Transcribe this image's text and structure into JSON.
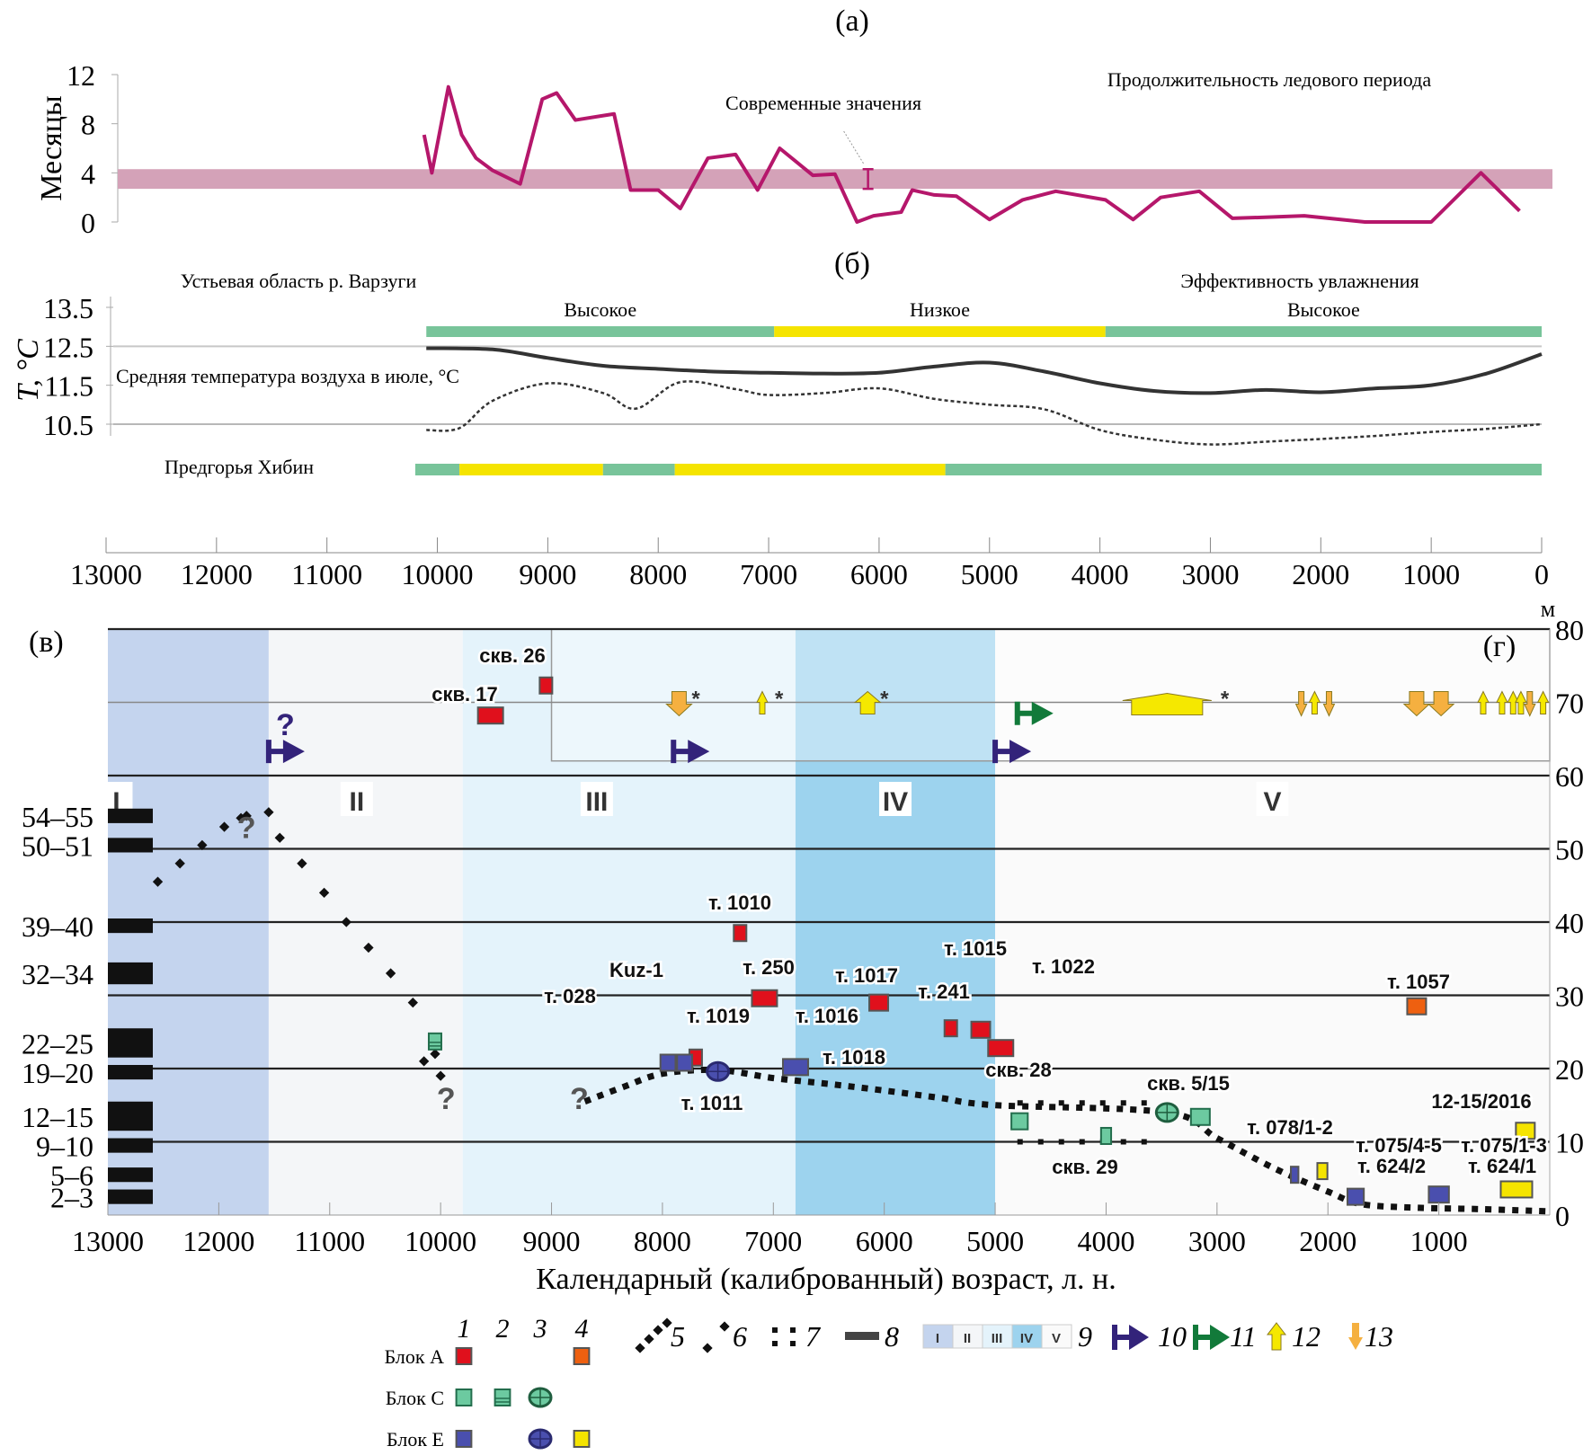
{
  "chart_data": [
    {
      "panel": "a",
      "type": "line",
      "panel_label": "(a)",
      "title": "Продолжительность ледового периода",
      "ylabel": "Месяцы",
      "yticks": [
        "12",
        "8",
        "4",
        "0"
      ],
      "ylim": [
        0,
        12
      ],
      "xlim": [
        13000,
        0
      ],
      "modern_band": [
        2.7,
        4.3
      ],
      "modern_label": "Современные значения",
      "modern_marker": {
        "x": 6100,
        "ylow": 2.7,
        "yhigh": 4.3
      },
      "series": [
        {
          "name": "Ледовый период",
          "color": "#b5176b",
          "x": [
            10120,
            10050,
            9900,
            9780,
            9650,
            9500,
            9250,
            9050,
            8920,
            8750,
            8400,
            8250,
            8000,
            7800,
            7550,
            7300,
            7100,
            6900,
            6600,
            6400,
            6200,
            6050,
            5800,
            5700,
            5500,
            5300,
            5000,
            4700,
            4400,
            3950,
            3700,
            3450,
            3100,
            2800,
            2450,
            2150,
            1600,
            1000,
            550,
            200
          ],
          "y": [
            7.1,
            4.0,
            11.0,
            7.1,
            5.2,
            4.2,
            3.1,
            10.0,
            10.5,
            8.3,
            8.8,
            2.6,
            2.6,
            1.1,
            5.2,
            5.5,
            2.6,
            6.0,
            3.8,
            3.9,
            0.0,
            0.5,
            0.8,
            2.6,
            2.2,
            2.1,
            0.2,
            1.8,
            2.5,
            1.8,
            0.2,
            2.0,
            2.5,
            0.3,
            0.4,
            0.5,
            0.0,
            0.0,
            4.0,
            0.9
          ]
        }
      ]
    },
    {
      "panel": "b",
      "type": "line",
      "panel_label": "(б)",
      "region_top": "Устьевая область р. Варзуги",
      "region_bottom": "Предгорья Хибин",
      "moisture_title": "Эффективность увлажнения",
      "ylabel": "T, °C",
      "yticks": [
        "13.5",
        "12.5",
        "11.5",
        "10.5"
      ],
      "ylim": [
        10.2,
        13.7
      ],
      "xlim": [
        13000,
        0
      ],
      "series_label": "Средняя температура воздуха в июле, °C",
      "series": [
        {
          "name": "Устьевая область р. Варзуги",
          "style": "solid",
          "color": "#333333",
          "x": [
            10100,
            9500,
            9000,
            8500,
            8000,
            7500,
            7000,
            6500,
            6000,
            5500,
            5000,
            4500,
            4000,
            3500,
            3000,
            2500,
            2000,
            1500,
            1000,
            500,
            0
          ],
          "y": [
            12.45,
            12.42,
            12.2,
            12.0,
            11.92,
            11.85,
            11.82,
            11.8,
            11.82,
            11.98,
            12.08,
            11.85,
            11.55,
            11.35,
            11.3,
            11.38,
            11.32,
            11.42,
            11.5,
            11.8,
            12.3
          ]
        },
        {
          "name": "Предгорья Хибин",
          "style": "dotted",
          "color": "#333333",
          "x": [
            10100,
            9800,
            9500,
            9000,
            8500,
            8200,
            7800,
            7300,
            7000,
            6500,
            6000,
            5500,
            5000,
            4500,
            4000,
            3500,
            3000,
            2500,
            2000,
            1500,
            1000,
            500,
            0
          ],
          "y": [
            10.35,
            10.4,
            11.1,
            11.55,
            11.3,
            10.9,
            11.58,
            11.4,
            11.25,
            11.3,
            11.42,
            11.15,
            11.0,
            10.88,
            10.35,
            10.1,
            9.98,
            10.05,
            10.12,
            10.2,
            10.3,
            10.38,
            10.5
          ]
        }
      ],
      "moisture_bars": {
        "top": {
          "segments": [
            {
              "from": 10100,
              "to": 6950,
              "level": "high"
            },
            {
              "from": 6950,
              "to": 3950,
              "level": "low"
            },
            {
              "from": 3950,
              "to": 0,
              "level": "high"
            }
          ],
          "labels": [
            "Высокое",
            "Низкое",
            "Высокое"
          ]
        },
        "bottom": {
          "segments": [
            {
              "from": 10200,
              "to": 9800,
              "level": "high"
            },
            {
              "from": 9800,
              "to": 8500,
              "level": "low"
            },
            {
              "from": 8500,
              "to": 7850,
              "level": "high"
            },
            {
              "from": 7850,
              "to": 5400,
              "level": "low"
            },
            {
              "from": 5400,
              "to": 0,
              "level": "high"
            }
          ]
        },
        "colors": {
          "high": "#78c49a",
          "low": "#f5e400"
        }
      },
      "xticks": [
        "13000",
        "12000",
        "11000",
        "10000",
        "9000",
        "8000",
        "7000",
        "6000",
        "5000",
        "4000",
        "3000",
        "2000",
        "1000",
        "0"
      ]
    },
    {
      "panel": "v",
      "type": "scatter",
      "panel_label": "(в)",
      "panel_label_g": "(г)",
      "xlabel": "Календарный (калиброванный) возраст, л. н.",
      "xlim": [
        13000,
        0
      ],
      "xticks": [
        "13000",
        "12000",
        "11000",
        "10000",
        "9000",
        "8000",
        "7000",
        "6000",
        "5000",
        "4000",
        "3000",
        "2000",
        "1000"
      ],
      "ylabel_right": "м",
      "ylim": [
        0,
        80
      ],
      "yticks_right": [
        "80",
        "70",
        "60",
        "50",
        "40",
        "30",
        "20",
        "10",
        "0"
      ],
      "terrace_levels": [
        "54–55",
        "50–51",
        "39–40",
        "32–34",
        "22–25",
        "19–20",
        "12–15",
        "9–10",
        "5–6",
        "2–3"
      ],
      "terrace_ranges": [
        [
          54,
          55
        ],
        [
          50,
          51
        ],
        [
          39,
          40
        ],
        [
          32,
          34
        ],
        [
          22,
          25
        ],
        [
          19,
          20
        ],
        [
          12,
          15
        ],
        [
          9,
          10
        ],
        [
          5,
          6
        ],
        [
          2,
          3
        ]
      ],
      "horizontal_lines": [
        80,
        70,
        60,
        50,
        40,
        30,
        20,
        10
      ],
      "stages": [
        {
          "label": "I",
          "from": 13000,
          "to": 11550,
          "color": "#c4d4ee"
        },
        {
          "label": "II",
          "from": 11550,
          "to": 9800,
          "color": "#f4f6f8"
        },
        {
          "label": "III",
          "from": 9800,
          "to": 6800,
          "color": "#e4f3fb"
        },
        {
          "label": "IV",
          "from": 6800,
          "to": 5000,
          "color": "#9dd3ee"
        },
        {
          "label": "V",
          "from": 5000,
          "to": 0,
          "color": "#fafafa"
        }
      ],
      "inset_box": {
        "from": 9000,
        "to": 0,
        "ylow": 62,
        "yhigh": 80
      },
      "samples": [
        {
          "label": "скв. 26",
          "x": 9050,
          "y": 72.3,
          "type": "A1",
          "w": 1
        },
        {
          "label": "скв. 17",
          "x": 9550,
          "y": 68.2,
          "type": "A1",
          "w": 2
        },
        {
          "label": "т. 1010",
          "x": 7300,
          "y": 38.5,
          "type": "A1",
          "w": 1
        },
        {
          "label": "т. 250",
          "x": 7080,
          "y": 29.6,
          "type": "A1",
          "w": 2
        },
        {
          "label": "т. 1017",
          "x": 6050,
          "y": 29.0,
          "type": "A1",
          "w": 1.5
        },
        {
          "label": "т. 241",
          "x": 5400,
          "y": 25.5,
          "type": "A1",
          "w": 1
        },
        {
          "label": "т. 1015",
          "x": 5130,
          "y": 25.3,
          "type": "A1",
          "w": 1.5
        },
        {
          "label": "т. 1022",
          "x": 4950,
          "y": 22.8,
          "type": "A1",
          "w": 2
        },
        {
          "label": "т. 1019",
          "x": 7700,
          "y": 21.5,
          "type": "A1",
          "w": 1
        },
        {
          "label": "т. 1057",
          "x": 1200,
          "y": 28.5,
          "type": "A4",
          "w": 1.5
        },
        {
          "label": "Kuz-1",
          "x": 7950,
          "y": 20.8,
          "type": "E1",
          "w": 1.2
        },
        {
          "label": "т. 028",
          "x": 7800,
          "y": 20.8,
          "type": "E1",
          "w": 1.2
        },
        {
          "label": "т. 1011",
          "x": 7500,
          "y": 19.6,
          "type": "E3",
          "w": 1
        },
        {
          "label": "т. 1016",
          "x": 6800,
          "y": 20.2,
          "type": "E1",
          "w": 2
        },
        {
          "label": "т. 1018",
          "x": 6800,
          "y": 20.2,
          "type": "E1",
          "w": 0
        },
        {
          "label": "",
          "x": 10050,
          "y": 23.7,
          "type": "C2",
          "w": 1
        },
        {
          "label": "скв. 28",
          "x": 4780,
          "y": 12.8,
          "type": "C1",
          "w": 1.3
        },
        {
          "label": "скв. 29",
          "x": 4000,
          "y": 10.8,
          "type": "C1",
          "w": 0.8
        },
        {
          "label": "скв. 5/15",
          "x": 3450,
          "y": 14.0,
          "type": "C3",
          "w": 1
        },
        {
          "label": "",
          "x": 3150,
          "y": 13.4,
          "type": "C1",
          "w": 1.5
        },
        {
          "label": "т. 078/1-2",
          "x": 2300,
          "y": 5.5,
          "type": "E1",
          "w": 0.6
        },
        {
          "label": "",
          "x": 2050,
          "y": 6.0,
          "type": "E4",
          "w": 0.8
        },
        {
          "label": "т. 624/2",
          "x": 1750,
          "y": 2.5,
          "type": "E1",
          "w": 1.3
        },
        {
          "label": "т. 075/4-5",
          "x": 1000,
          "y": 2.8,
          "type": "E1",
          "w": 1.6
        },
        {
          "label": "т. 624/1",
          "x": 300,
          "y": 3.5,
          "type": "E4",
          "w": 2.5
        },
        {
          "label": "т. 075/1-3",
          "x": 180,
          "y": 4.2,
          "type": "E4",
          "w": 0
        },
        {
          "label": "12-15/2016",
          "x": 220,
          "y": 11.5,
          "type": "E4",
          "w": 1.5
        }
      ],
      "sea_level_curve_5": {
        "x": [
          12550,
          12350,
          12150,
          11950,
          11750,
          11450,
          11250,
          11050,
          10850,
          10650,
          10450,
          10250,
          10050
        ],
        "y": [
          45.5,
          48.0,
          50.5,
          53.0,
          54.5,
          51.5,
          48.0,
          44.0,
          40.0,
          36.5,
          33.0,
          29.0,
          22.0
        ]
      },
      "sea_level_curve_6": {
        "x": [
          11800,
          11550,
          10150,
          10000
        ],
        "y": [
          54.2,
          55.0,
          21.0,
          19.0
        ]
      },
      "sea_level_curve_7": {
        "upper": {
          "from": 4800,
          "to": 3500,
          "y": 15.3
        },
        "lower": {
          "from": 4800,
          "to": 3500,
          "y": 10.0
        }
      },
      "sea_level_curve_main": {
        "x": [
          8700,
          8350,
          8000,
          7500,
          7000,
          6500,
          6000,
          5500,
          5000,
          3450,
          3000,
          2500,
          2000,
          1700,
          1200,
          600,
          0
        ],
        "y": [
          15.5,
          17.5,
          19.3,
          19.8,
          18.7,
          17.9,
          17.0,
          16.0,
          15.0,
          14.0,
          10.5,
          6.5,
          3.2,
          1.5,
          1.0,
          0.8,
          0.5
        ]
      },
      "question_marks": [
        {
          "x": 11750,
          "y": 51.5,
          "color": "#555555"
        },
        {
          "x": 9950,
          "y": 14.5,
          "color": "#555555"
        },
        {
          "x": 8750,
          "y": 14.5,
          "color": "#555555"
        },
        {
          "x": 11400,
          "y": 65.5,
          "color": "#33237a"
        }
      ],
      "stage_arrows_purple": [
        {
          "x": 11550,
          "y": 63.3
        },
        {
          "x": 7900,
          "y": 63.3
        },
        {
          "x": 5000,
          "y": 63.3
        }
      ],
      "stage_arrows_green": [
        {
          "x": 4800,
          "y": 68.5
        }
      ],
      "trend_arrows": [
        {
          "x": 7850,
          "dir": "down",
          "size": "large",
          "star": true
        },
        {
          "x": 7100,
          "dir": "up",
          "size": "small",
          "star": true
        },
        {
          "x": 6150,
          "dir": "up",
          "size": "large",
          "star": true
        },
        {
          "x": 2240,
          "dir": "down",
          "size": "small",
          "star": false
        },
        {
          "x": 2120,
          "dir": "up",
          "size": "small",
          "star": false
        },
        {
          "x": 1990,
          "dir": "down",
          "size": "small",
          "star": false
        },
        {
          "x": 1200,
          "dir": "down",
          "size": "large",
          "star": false
        },
        {
          "x": 980,
          "dir": "down",
          "size": "large",
          "star": false
        },
        {
          "x": 600,
          "dir": "up",
          "size": "small",
          "star": false
        },
        {
          "x": 430,
          "dir": "up",
          "size": "small",
          "star": false
        },
        {
          "x": 330,
          "dir": "up",
          "size": "small",
          "star": false
        },
        {
          "x": 260,
          "dir": "up",
          "size": "small",
          "star": false
        },
        {
          "x": 180,
          "dir": "down",
          "size": "small",
          "star": false
        },
        {
          "x": 60,
          "dir": "up",
          "size": "small",
          "star": false
        }
      ],
      "plateau": {
        "from": 3900,
        "to": 3000,
        "star": true
      }
    }
  ],
  "legend": {
    "column_numbers": [
      "1",
      "2",
      "3",
      "4"
    ],
    "rows": [
      {
        "label": "Блок A",
        "items": [
          {
            "col": 1,
            "type": "A1"
          },
          {
            "col": 4,
            "type": "A4"
          }
        ]
      },
      {
        "label": "Блок C",
        "items": [
          {
            "col": 1,
            "type": "C1"
          },
          {
            "col": 2,
            "type": "C2"
          },
          {
            "col": 3,
            "type": "C3"
          }
        ]
      },
      {
        "label": "Блок E",
        "items": [
          {
            "col": 1,
            "type": "E1"
          },
          {
            "col": 3,
            "type": "E3"
          },
          {
            "col": 4,
            "type": "E4"
          }
        ]
      }
    ],
    "items": [
      {
        "num": "5",
        "symbol": "diamond-dots-up"
      },
      {
        "num": "6",
        "symbol": "diamond-dots-sparse"
      },
      {
        "num": "7",
        "symbol": "square-dots-pairs"
      },
      {
        "num": "8",
        "symbol": "terrace-bar"
      },
      {
        "num": "9",
        "symbol": "stage-strip",
        "stage_labels": [
          "I",
          "II",
          "III",
          "IV",
          "V"
        ]
      },
      {
        "num": "10",
        "symbol": "purple-arrow"
      },
      {
        "num": "11",
        "symbol": "green-arrow"
      },
      {
        "num": "12",
        "symbol": "up-arrow-yellow"
      },
      {
        "num": "13",
        "symbol": "down-arrow-orange"
      }
    ]
  },
  "colors": {
    "A1": "#e0101c",
    "A4": "#ee6010",
    "C": "#6ccaa0",
    "E1": "#4a4fae",
    "E4": "#f5e400",
    "purple_arrow": "#33237a",
    "green_arrow": "#127a3a",
    "up_arrow": "#f5e800",
    "down_arrow": "#f5b040",
    "ice_line": "#b5176b",
    "ice_band": "#d4a2b8"
  }
}
